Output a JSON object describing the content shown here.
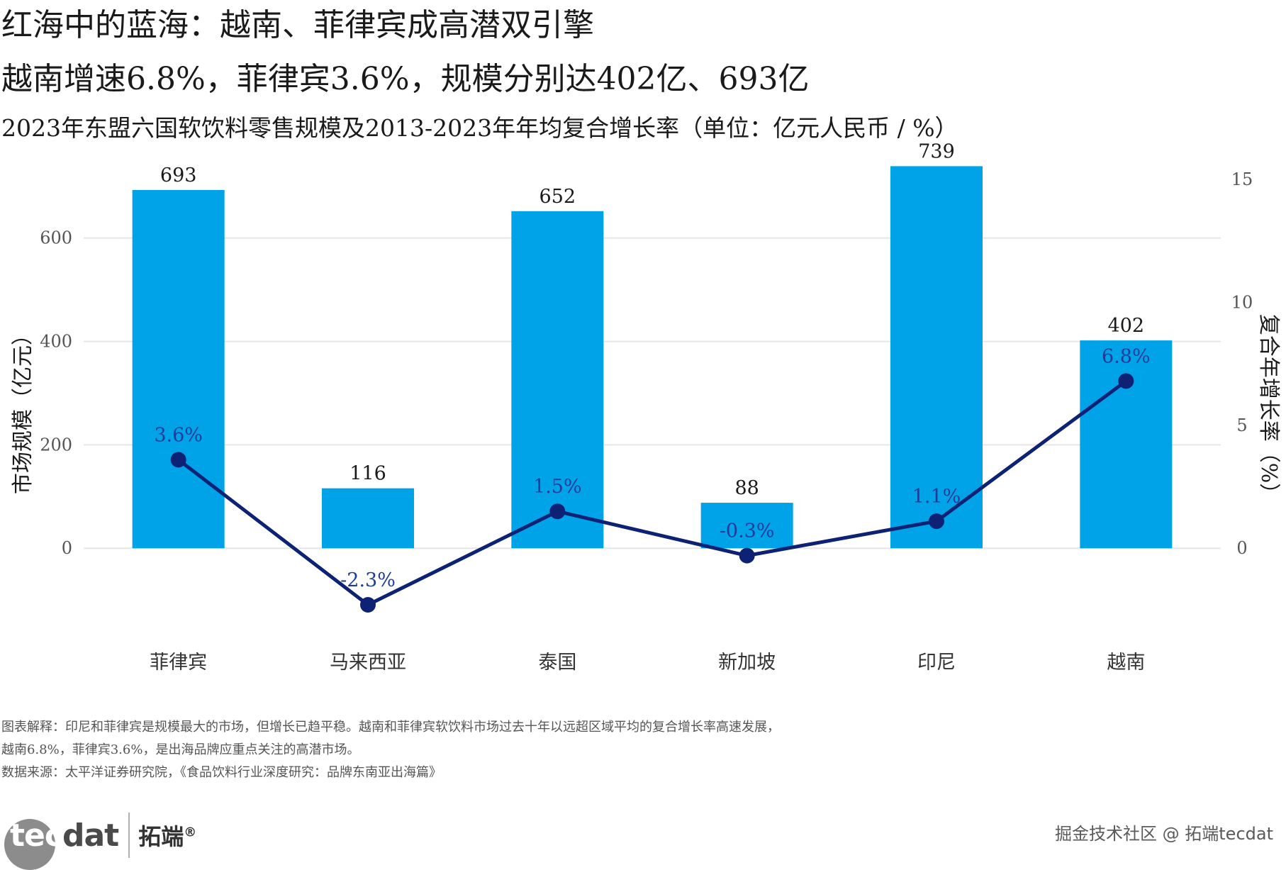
{
  "header": {
    "title_line1": "红海中的蓝海：越南、菲律宾成高潜双引擎",
    "title_line2": "越南增速6.8%，菲律宾3.6%，规模分别达402亿、693亿",
    "subtitle": "2023年东盟六国软饮料零售规模及2013-2023年年均复合增长率（单位：亿元人民币 / %）"
  },
  "chart_data": {
    "type": "bar",
    "categories": [
      "菲律宾",
      "马来西亚",
      "泰国",
      "新加坡",
      "印尼",
      "越南"
    ],
    "series": [
      {
        "name": "零售规模",
        "type": "bar",
        "axis": "left",
        "values": [
          693,
          116,
          652,
          88,
          739,
          402
        ],
        "labels": [
          "693",
          "116",
          "652",
          "88",
          "739",
          "402"
        ]
      },
      {
        "name": "复合年增长率",
        "type": "line",
        "axis": "right",
        "values": [
          3.6,
          -2.3,
          1.5,
          -0.3,
          1.1,
          6.8
        ],
        "labels": [
          "3.6%",
          "-2.3%",
          "1.5%",
          "-0.3%",
          "1.1%",
          "6.8%"
        ]
      }
    ],
    "ylabel": "市场规模（亿元）",
    "y2label": "复合年增长率（%）",
    "yticks": [
      0,
      200,
      400,
      600
    ],
    "y2ticks": [
      0,
      5,
      10,
      15
    ],
    "ylim": [
      -215,
      745
    ],
    "y2lim": [
      -2.3,
      15
    ],
    "bar_color": "#00a3e8",
    "line_color": "#0d2275",
    "grid": true
  },
  "footer": {
    "note_line1": "图表解释：印尼和菲律宾是规模最大的市场，但增长已趋平稳。越南和菲律宾软饮料市场过去十年以远超区域平均的复合增长率高速发展，",
    "note_line2": "越南6.8%，菲律宾3.6%，是出海品牌应重点关注的高潜市场。",
    "source": "数据来源：太平洋证券研究院，《食品饮料行业深度研究：品牌东南亚出海篇》"
  },
  "brand": {
    "logo_text_light": "tec",
    "logo_text_dark": "dat",
    "logo_cn": "拓端",
    "logo_reg": "®",
    "watermark": "掘金技术社区 @ 拓端tecdat"
  }
}
